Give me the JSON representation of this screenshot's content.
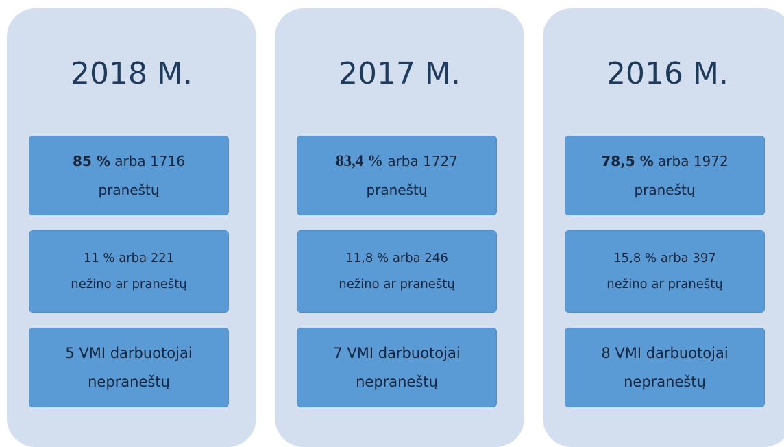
{
  "columns": [
    {
      "title": "2018 M.",
      "boxes": [
        {
          "highlight": "85 %",
          "line1": "arba 1716",
          "line2": "praneštų"
        },
        {
          "line1": "11 % arba 221",
          "line2": "nežino ar praneštų"
        },
        {
          "line1": "5 VMI darbuotojai",
          "line2": "nepraneštų"
        }
      ]
    },
    {
      "title": "2017 M.",
      "boxes": [
        {
          "highlight": "83,4 %",
          "line1": "arba 1727",
          "line2": "praneštų"
        },
        {
          "line1": "11,8 % arba 246",
          "line2": "nežino ar praneštų"
        },
        {
          "line1": "7 VMI darbuotojai",
          "line2": "nepraneštų"
        }
      ]
    },
    {
      "title": "2016 M.",
      "boxes": [
        {
          "highlight": "78,5 %",
          "line1": "arba 1972",
          "line2": "praneštų"
        },
        {
          "line1": "15,8 % arba 397",
          "line2": "nežino ar praneštų"
        },
        {
          "line1": "8 VMI darbuotojai",
          "line2": "nepraneštų"
        }
      ]
    }
  ]
}
